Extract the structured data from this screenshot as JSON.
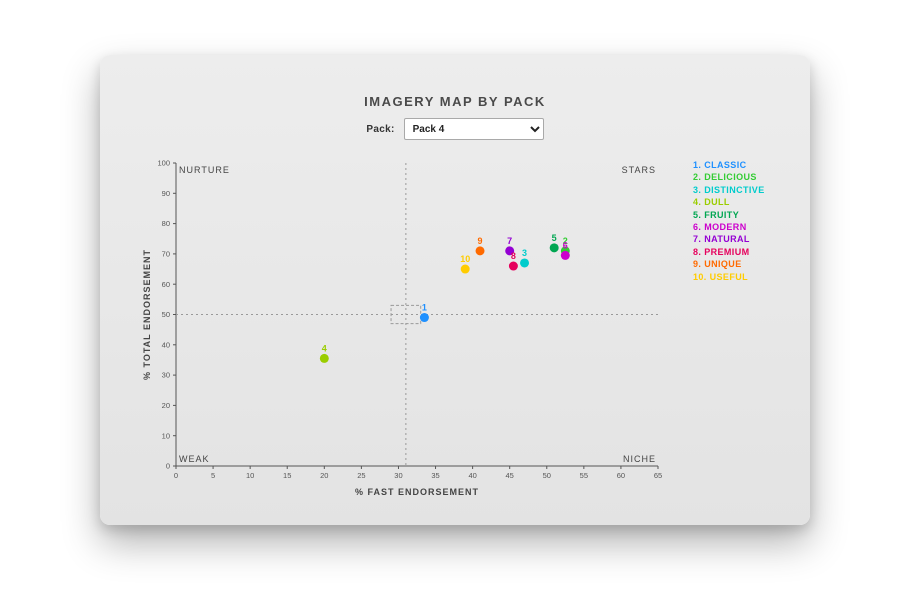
{
  "controls": {
    "pack_label": "Pack:",
    "pack_selected": "Pack 4"
  },
  "chart_data": {
    "type": "scatter",
    "title": "IMAGERY MAP BY PACK",
    "xlabel": "% FAST ENDORSEMENT",
    "ylabel": "% TOTAL ENDORSEMENT",
    "xlim": [
      0,
      65
    ],
    "ylim": [
      0,
      100
    ],
    "xtick_step": 5,
    "ytick_step": 10,
    "grid": false,
    "legend_position": "right",
    "quadrant_labels": {
      "top_left": "NURTURE",
      "top_right": "STARS",
      "bottom_left": "WEAK",
      "bottom_right": "NICHE"
    },
    "reference_lines": {
      "x": 31,
      "y": 50
    },
    "selection_box": {
      "x_min": 29,
      "x_max": 33,
      "y_min": 47,
      "y_max": 53
    },
    "points": [
      {
        "n": 1,
        "label": "CLASSIC",
        "color": "#1E90FF",
        "x": 33.5,
        "y": 49
      },
      {
        "n": 2,
        "label": "DELICIOUS",
        "color": "#33CC33",
        "x": 52.5,
        "y": 71
      },
      {
        "n": 3,
        "label": "DISTINCTIVE",
        "color": "#00CCCC",
        "x": 47,
        "y": 67
      },
      {
        "n": 4,
        "label": "DULL",
        "color": "#9ACD00",
        "x": 20,
        "y": 35.5
      },
      {
        "n": 5,
        "label": "FRUITY",
        "color": "#00A651",
        "x": 51,
        "y": 72
      },
      {
        "n": 6,
        "label": "MODERN",
        "color": "#CC00CC",
        "x": 52.5,
        "y": 69.5
      },
      {
        "n": 7,
        "label": "NATURAL",
        "color": "#9400D3",
        "x": 45,
        "y": 71
      },
      {
        "n": 8,
        "label": "PREMIUM",
        "color": "#E6005C",
        "x": 45.5,
        "y": 66
      },
      {
        "n": 9,
        "label": "UNIQUE",
        "color": "#FF6A00",
        "x": 41,
        "y": 71
      },
      {
        "n": 10,
        "label": "USEFUL",
        "color": "#FFCC00",
        "x": 39,
        "y": 65
      }
    ]
  }
}
